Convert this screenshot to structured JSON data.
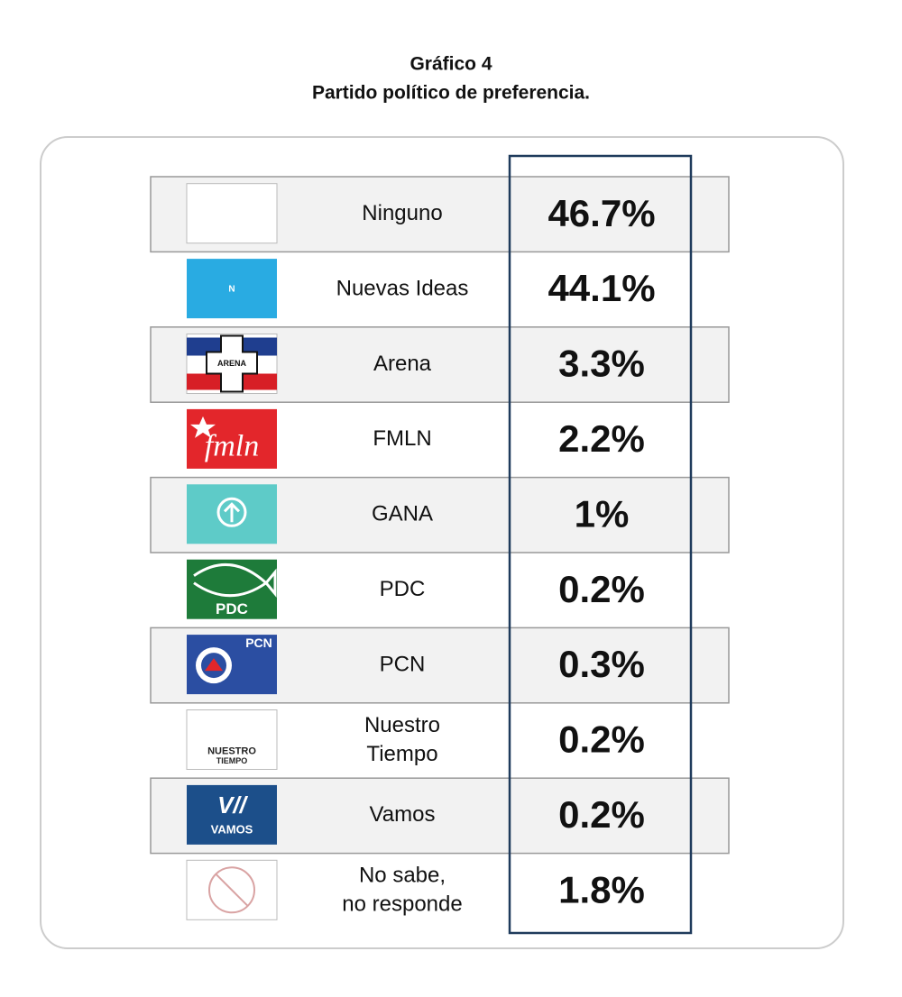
{
  "header": {
    "title": "Gráfico 4",
    "subtitle": "Partido político de preferencia."
  },
  "table": {
    "rows": [
      {
        "name": [
          "Ninguno"
        ],
        "value": "46.7%"
      },
      {
        "name": [
          "Nuevas Ideas"
        ],
        "value": "44.1%",
        "logo_text": [
          "N"
        ]
      },
      {
        "name": [
          "Arena"
        ],
        "value": "3.3%",
        "logo_text": [
          "ARENA"
        ]
      },
      {
        "name": [
          "FMLN"
        ],
        "value": "2.2%",
        "logo_text": [
          "fmln"
        ]
      },
      {
        "name": [
          "GANA"
        ],
        "value": "1%"
      },
      {
        "name": [
          "PDC"
        ],
        "value": "0.2%",
        "logo_text": [
          "PDC"
        ]
      },
      {
        "name": [
          "PCN"
        ],
        "value": "0.3%",
        "logo_text": [
          "PCN"
        ]
      },
      {
        "name": [
          "Nuestro",
          "Tiempo"
        ],
        "value": "0.2%",
        "logo_text": [
          "NUESTRO",
          "TIEMPO"
        ]
      },
      {
        "name": [
          "Vamos"
        ],
        "value": "0.2%",
        "logo_text": [
          "V//",
          "VAMOS"
        ]
      },
      {
        "name": [
          "No sabe,",
          "no responde"
        ],
        "value": "1.8%"
      }
    ]
  }
}
